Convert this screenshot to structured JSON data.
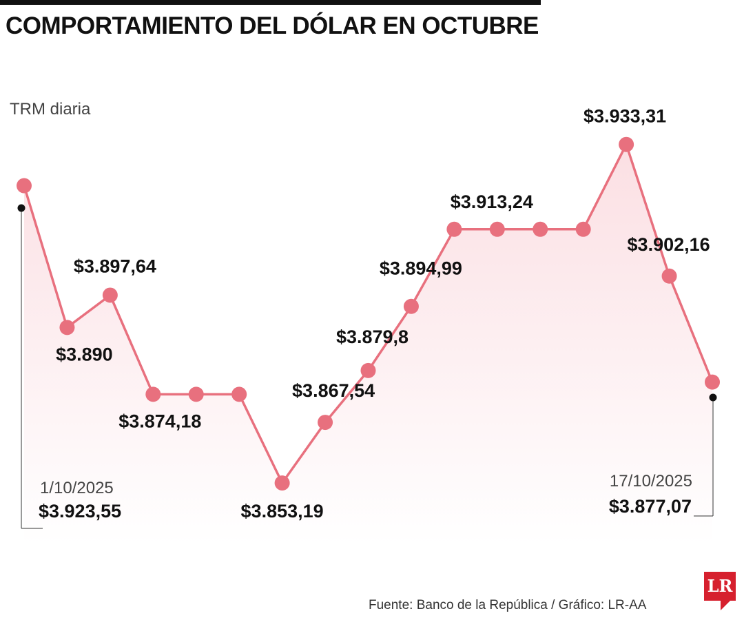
{
  "title": "COMPORTAMIENTO DEL DÓLAR EN OCTUBRE",
  "source": "Fuente: Banco de la República / Gráfico: LR-AA",
  "logo_text": "LR",
  "colors": {
    "line": "#e8707e",
    "marker": "#e8707e",
    "area": "#fdeef0",
    "text": "#111111"
  },
  "chart_data": {
    "type": "line",
    "title": "COMPORTAMIENTO DEL DÓLAR EN OCTUBRE",
    "ylabel": "TRM diaria",
    "start": {
      "date": "1/10/2025",
      "value_label": "$3.923,55"
    },
    "end": {
      "date": "17/10/2025",
      "value_label": "$3.877,07"
    },
    "ylim": [
      3840,
      3945
    ],
    "values": [
      3923.55,
      3890,
      3897.64,
      3874.18,
      3874.18,
      3874.18,
      3853.19,
      3867.54,
      3879.8,
      3894.99,
      3913.24,
      3913.24,
      3913.24,
      3913.24,
      3933.31,
      3902.16,
      3877.07
    ],
    "labels": [
      "",
      "$3.890",
      "$3.897,64",
      "$3.874,18",
      "",
      "",
      "$3.853,19",
      "$3.867,54",
      "$3.879,8",
      "$3.894,99",
      "",
      "$3.913,24",
      "",
      "",
      "$3.933,31",
      "$3.902,16",
      ""
    ],
    "label_side": [
      "",
      "below",
      "above",
      "below",
      "above",
      "",
      "below",
      "above",
      "above",
      "above",
      "",
      "above",
      "",
      "",
      "above",
      "above",
      ""
    ]
  }
}
